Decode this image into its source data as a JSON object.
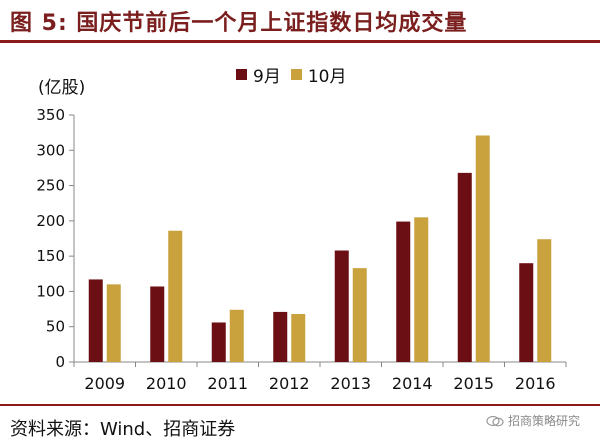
{
  "header": {
    "title": "图 5:  国庆节前后一个月上证指数日均成交量"
  },
  "colors": {
    "title": "#7a1e1e",
    "rule": "#8b1a1a",
    "series_sep": "#6b0f14",
    "series_oct": "#c9a23e"
  },
  "chart_data": {
    "type": "bar",
    "ylabel": "(亿股)",
    "categories": [
      "2009",
      "2010",
      "2011",
      "2012",
      "2013",
      "2014",
      "2015",
      "2016"
    ],
    "series": [
      {
        "name": "9月",
        "values": [
          117,
          107,
          56,
          71,
          158,
          199,
          268,
          140
        ]
      },
      {
        "name": "10月",
        "values": [
          110,
          186,
          74,
          68,
          133,
          205,
          321,
          174
        ]
      }
    ],
    "ylim": [
      0,
      350
    ],
    "yticks": [
      0,
      50,
      100,
      150,
      200,
      250,
      300,
      350
    ],
    "grid": false,
    "legend_position": "top-center"
  },
  "footer": {
    "source": "资料来源：Wind、招商证券",
    "watermark": "招商策略研究"
  }
}
